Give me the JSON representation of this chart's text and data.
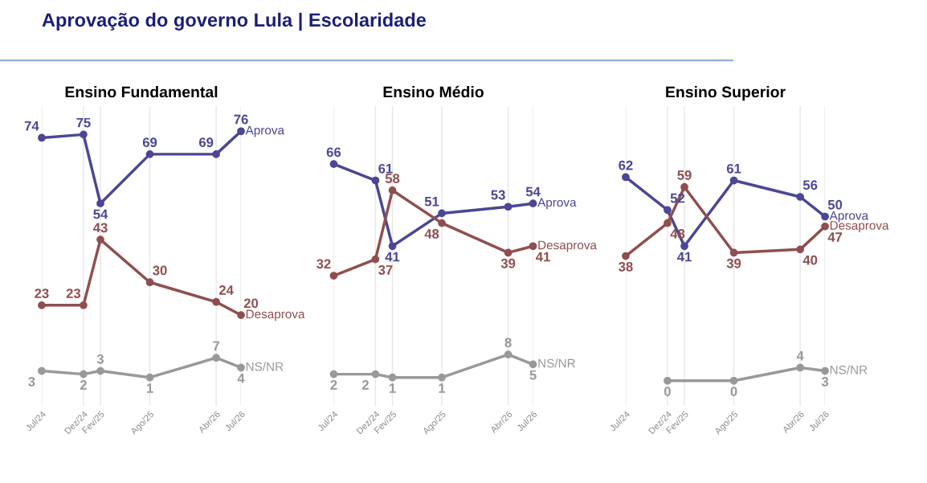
{
  "chart_data": [
    {
      "type": "line",
      "title": "Ensino Fundamental",
      "annotations": [
        "Aprovação do governo Lula | Escolaridade"
      ],
      "x": [
        "2024-07",
        "2024-12",
        "2025-02",
        "2025-08",
        "2026-04",
        "2026-07"
      ],
      "xlim": [
        "2024-07",
        "2026-07"
      ],
      "xticks": [
        {
          "value": "2024-07",
          "label": "Jul/24"
        },
        {
          "value": "2024-12",
          "label": "Dez/24"
        },
        {
          "value": "2025-02",
          "label": "Fev/25"
        },
        {
          "value": "2025-08",
          "label": "Ago/25"
        },
        {
          "value": "2026-04",
          "label": "Abr/26"
        },
        {
          "value": "2026-07",
          "label": "Jul/26"
        }
      ],
      "series": [
        {
          "name": "Aprova",
          "color": "#4b4695",
          "values": [
            74,
            75,
            54,
            69,
            69,
            76
          ]
        },
        {
          "name": "Desaprova",
          "color": "#8f4f4f",
          "values": [
            23,
            23,
            43,
            30,
            24,
            20
          ]
        },
        {
          "name": "NS/NR",
          "color": "#999999",
          "values": [
            3,
            2,
            3,
            1,
            7,
            4
          ]
        }
      ],
      "data_labels": true,
      "grid": "x",
      "marker": "circle",
      "line_style": "solid",
      "legend": "right",
      "tick_labels": "x"
    },
    {
      "type": "line",
      "title": "Ensino Médio",
      "x": [
        "2024-07",
        "2024-12",
        "2025-02",
        "2025-08",
        "2026-04",
        "2026-07"
      ],
      "xlim": [
        "2024-07",
        "2026-07"
      ],
      "xticks": [
        {
          "value": "2024-07",
          "label": "Jul/24"
        },
        {
          "value": "2024-12",
          "label": "Dez/24"
        },
        {
          "value": "2025-02",
          "label": "Fev/25"
        },
        {
          "value": "2025-08",
          "label": "Ago/25"
        },
        {
          "value": "2026-04",
          "label": "Abr/26"
        },
        {
          "value": "2026-07",
          "label": "Jul/26"
        }
      ],
      "series": [
        {
          "name": "Aprova",
          "color": "#4b4695",
          "values": [
            66,
            61,
            41,
            51,
            53,
            54
          ]
        },
        {
          "name": "Desaprova",
          "color": "#8f4f4f",
          "values": [
            32,
            37,
            58,
            48,
            39,
            41
          ]
        },
        {
          "name": "NS/NR",
          "color": "#999999",
          "values": [
            2,
            2,
            1,
            1,
            8,
            5
          ]
        }
      ],
      "data_labels": true,
      "grid": "x",
      "marker": "circle",
      "line_style": "solid",
      "legend": "right",
      "tick_labels": "x"
    },
    {
      "type": "line",
      "title": "Ensino Superior",
      "x": [
        "2024-07",
        "2024-12",
        "2025-02",
        "2025-08",
        "2026-04",
        "2026-07"
      ],
      "xlim": [
        "2024-07",
        "2026-07"
      ],
      "xticks": [
        {
          "value": "2024-07",
          "label": "Jul/24"
        },
        {
          "value": "2024-12",
          "label": "Dez/24"
        },
        {
          "value": "2025-02",
          "label": "Fev/25"
        },
        {
          "value": "2025-08",
          "label": "Ago/25"
        },
        {
          "value": "2026-04",
          "label": "Abr/26"
        },
        {
          "value": "2026-07",
          "label": "Jul/26"
        }
      ],
      "series": [
        {
          "name": "Aprova",
          "color": "#4b4695",
          "values": [
            62,
            52,
            41,
            61,
            56,
            50
          ]
        },
        {
          "name": "Desaprova",
          "color": "#8f4f4f",
          "values": [
            38,
            48,
            59,
            39,
            40,
            47
          ]
        },
        {
          "name": "NS/NR",
          "color": "#999999",
          "x": [
            "2024-12",
            "2025-08",
            "2026-04",
            "2026-07"
          ],
          "values": [
            0,
            0,
            4,
            3
          ]
        }
      ],
      "data_labels": true,
      "grid": "x",
      "marker": "circle",
      "line_style": "solid",
      "legend": "right",
      "tick_labels": "x"
    }
  ]
}
